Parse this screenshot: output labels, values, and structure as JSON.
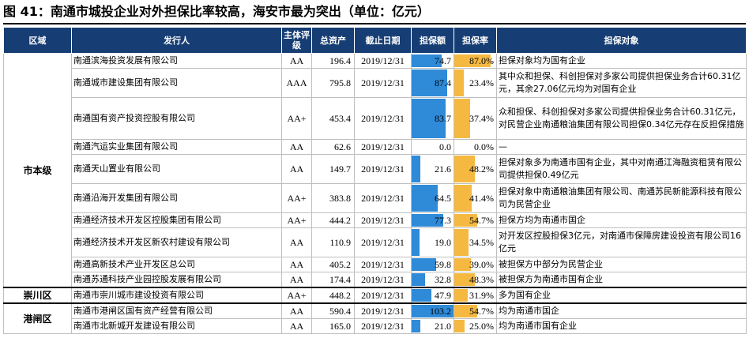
{
  "title": "图 41：南通市城投企业对外担保比率较高，海安市最为突出（单位：亿元）",
  "header": {
    "region": "区域",
    "issuer": "发行人",
    "rating": "主体评级",
    "assets": "总资产",
    "date": "截止日期",
    "guarantee": "担保额",
    "ratio": "担保率",
    "target": "担保对象"
  },
  "colors": {
    "header_bg": "#173e74",
    "guarantee_bar": "#2f8ad8",
    "ratio_bar": "#f5b942"
  },
  "max_guarantee": 103.2,
  "regions": [
    {
      "name": "市本级",
      "rows": [
        {
          "issuer": "南通滨海投资发展有限公司",
          "rating": "AA",
          "assets": "196.4",
          "date": "2019/12/31",
          "guarantee": "74.7",
          "ratio": "87.0%",
          "ratio_value": 87.0,
          "target": "担保对象均为国有企业",
          "lines": 1
        },
        {
          "issuer": "南通城市建设集团有限公司",
          "rating": "AAA",
          "assets": "795.8",
          "date": "2019/12/31",
          "guarantee": "87.4",
          "ratio": "23.4%",
          "ratio_value": 23.4,
          "target": "其中众和担保、科创担保对多家公司提供担保业务合计60.31亿元，其余27.06亿元均为对国有企业",
          "lines": 2
        },
        {
          "issuer": "南通国有资产投资控股有限公司",
          "rating": "AA+",
          "assets": "453.4",
          "date": "2019/12/31",
          "guarantee": "83.7",
          "ratio": "37.4%",
          "ratio_value": 37.4,
          "target": "众和担保、科创担保对多家公司提供担保业务合计60.31亿元，对民营企业南通粮油集团有限公司担保0.34亿元存在反担保措施",
          "lines": 3
        },
        {
          "issuer": "南通汽运实业集团有限公司",
          "rating": "AA",
          "assets": "62.6",
          "date": "2019/12/31",
          "guarantee": "0.0",
          "ratio": "0.0%",
          "ratio_value": 0.0,
          "target": "—",
          "lines": 1
        },
        {
          "issuer": "南通天山置业有限公司",
          "rating": "AA",
          "assets": "149.7",
          "date": "2019/12/31",
          "guarantee": "21.6",
          "ratio": "48.2%",
          "ratio_value": 48.2,
          "target": "担保对象多为南通市国有企业，其中对南通江海融资租赁有限公司提供担保0.49亿元",
          "lines": 2
        },
        {
          "issuer": "南通沿海开发集团有限公司",
          "rating": "AA+",
          "assets": "383.8",
          "date": "2019/12/31",
          "guarantee": "64.5",
          "ratio": "41.4%",
          "ratio_value": 41.4,
          "target": "担保对象中南通粮油集团有限公司、南通苏民新能源科技有限公司为民营企业",
          "lines": 2
        },
        {
          "issuer": "南通经济技术开发区控股集团有限公司",
          "rating": "AA+",
          "assets": "444.2",
          "date": "2019/12/31",
          "guarantee": "77.3",
          "ratio": "54.7%",
          "ratio_value": 54.7,
          "target": "担保方均为南通市国企",
          "lines": 1
        },
        {
          "issuer": "南通经济技术开发区新农村建设有限公司",
          "rating": "AA",
          "assets": "110.9",
          "date": "2019/12/31",
          "guarantee": "19.0",
          "ratio": "34.5%",
          "ratio_value": 34.5,
          "target": "对开发区控股担保3亿元，对南通市保障房建设投资有限公司16亿元",
          "lines": 2
        },
        {
          "issuer": "南通高新技术产业开发区总公司",
          "rating": "AA",
          "assets": "405.2",
          "date": "2019/12/31",
          "guarantee": "59.8",
          "ratio": "39.0%",
          "ratio_value": 39.0,
          "target": "被担保方中部分为民营企业",
          "lines": 1
        },
        {
          "issuer": "南通苏通科技产业园控股发展有限公司",
          "rating": "AA",
          "assets": "174.4",
          "date": "2019/12/31",
          "guarantee": "32.8",
          "ratio": "48.3%",
          "ratio_value": 48.3,
          "target": "被担保方为南通市国有企业",
          "lines": 1
        }
      ]
    },
    {
      "name": "崇川区",
      "rows": [
        {
          "issuer": "南通市崇川城市建设投资有限公司",
          "rating": "AA+",
          "assets": "448.2",
          "date": "2019/12/31",
          "guarantee": "47.9",
          "ratio": "31.9%",
          "ratio_value": 31.9,
          "target": "多为国有企业",
          "lines": 1
        }
      ]
    },
    {
      "name": "港闸区",
      "rows": [
        {
          "issuer": "南通市港闸区国有资产经营有限公司",
          "rating": "AA",
          "assets": "590.4",
          "date": "2019/12/31",
          "guarantee": "103.2",
          "ratio": "54.7%",
          "ratio_value": 54.7,
          "target": "均为南通市国企",
          "lines": 1
        },
        {
          "issuer": "南通市北新城开发建设有限公司",
          "rating": "AA",
          "assets": "165.0",
          "date": "2019/12/31",
          "guarantee": "21.0",
          "ratio": "25.0%",
          "ratio_value": 25.0,
          "target": "均为南通市国有企业",
          "lines": 1
        }
      ]
    }
  ]
}
